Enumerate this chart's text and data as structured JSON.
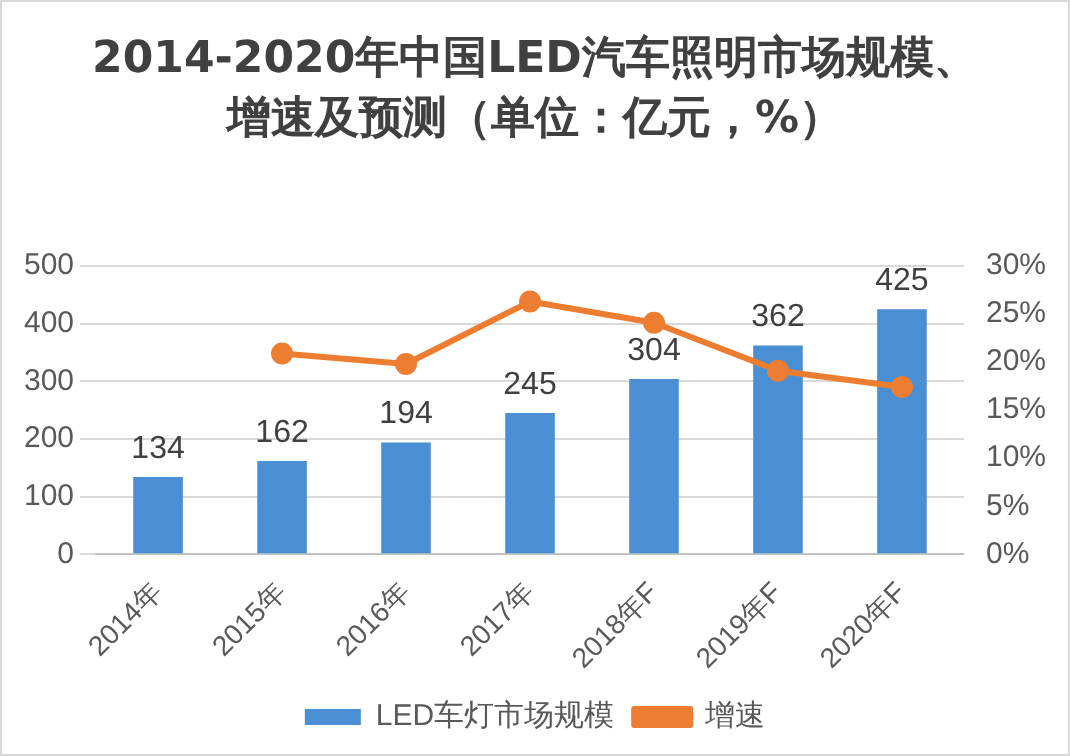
{
  "chart_data": {
    "type": "bar",
    "title": "2014-2020年中国LED汽车照明市场规模、增速及预测（单位：亿元，%）",
    "categories": [
      "2014年",
      "2015年",
      "2016年",
      "2017年",
      "2018年F",
      "2019年F",
      "2020年F"
    ],
    "series": [
      {
        "name": "LED车灯市场规模",
        "color": "#4a8fd4",
        "values": [
          134,
          162,
          194,
          245,
          304,
          362,
          425
        ],
        "value_labels": [
          "134",
          "162",
          "194",
          "245",
          "304",
          "362",
          "425"
        ]
      },
      {
        "name": "增速",
        "type": "line",
        "axis": "y2",
        "color": "#ed7d31",
        "values": [
          null,
          20.9,
          19.8,
          26.3,
          24.1,
          19.1,
          17.4
        ]
      }
    ],
    "ylim": [
      0,
      500
    ],
    "yticks": [
      0,
      100,
      200,
      300,
      400,
      500
    ],
    "y2lim": [
      0,
      30
    ],
    "y2ticks": [
      {
        "value": 0,
        "label": "0%"
      },
      {
        "value": 5,
        "label": "5%"
      },
      {
        "value": 10,
        "label": "10%"
      },
      {
        "value": 15,
        "label": "15%"
      },
      {
        "value": 20,
        "label": "20%"
      },
      {
        "value": 25,
        "label": "25%"
      },
      {
        "value": 30,
        "label": "30%"
      }
    ],
    "grid": "y",
    "legend": "bottom",
    "marker": "circle"
  }
}
